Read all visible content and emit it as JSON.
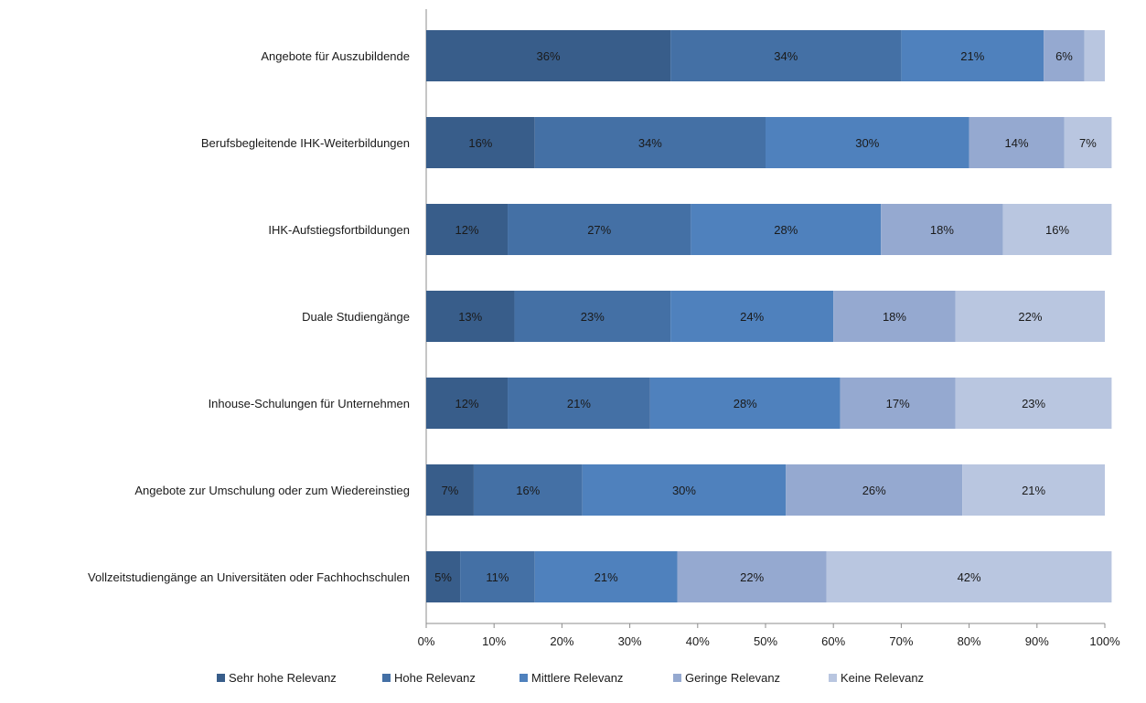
{
  "chart_data": {
    "type": "bar",
    "orientation": "horizontal",
    "stacked": "percent",
    "categories": [
      "Angebote für Auszubildende",
      "Berufsbegleitende IHK-Weiterbildungen",
      "IHK-Aufstiegsfortbildungen",
      "Duale Studiengänge",
      "Inhouse-Schulungen für Unternehmen",
      "Angebote zur Umschulung oder zum Wiedereinstieg",
      "Vollzeitstudiengänge an Universitäten oder Fachhochschulen"
    ],
    "series": [
      {
        "name": "Sehr hohe Relevanz",
        "color": "#385d8a",
        "values": [
          36,
          16,
          12,
          13,
          12,
          7,
          5
        ]
      },
      {
        "name": "Hohe Relevanz",
        "color": "#4470a5",
        "values": [
          34,
          34,
          27,
          23,
          21,
          16,
          11
        ]
      },
      {
        "name": "Mittlere Relevanz",
        "color": "#4f81bd",
        "values": [
          21,
          30,
          28,
          24,
          28,
          30,
          21
        ]
      },
      {
        "name": "Geringe Relevanz",
        "color": "#95a9d0",
        "values": [
          6,
          14,
          18,
          18,
          17,
          26,
          22
        ]
      },
      {
        "name": "Keine Relevanz",
        "color": "#b9c6e0",
        "values": [
          3,
          7,
          16,
          22,
          23,
          21,
          42
        ]
      }
    ],
    "value_labels": [
      [
        "36%",
        "34%",
        "21%",
        "6%",
        ""
      ],
      [
        "16%",
        "34%",
        "30%",
        "14%",
        "7%"
      ],
      [
        "12%",
        "27%",
        "28%",
        "18%",
        "16%"
      ],
      [
        "13%",
        "23%",
        "24%",
        "18%",
        "22%"
      ],
      [
        "12%",
        "21%",
        "28%",
        "17%",
        "23%"
      ],
      [
        "7%",
        "16%",
        "30%",
        "26%",
        "21%"
      ],
      [
        "5%",
        "11%",
        "21%",
        "22%",
        "42%"
      ]
    ],
    "x_ticks": [
      "0%",
      "10%",
      "20%",
      "30%",
      "40%",
      "50%",
      "60%",
      "70%",
      "80%",
      "90%",
      "100%"
    ],
    "xlim": [
      0,
      100
    ],
    "grid": false,
    "legend_position": "bottom"
  }
}
